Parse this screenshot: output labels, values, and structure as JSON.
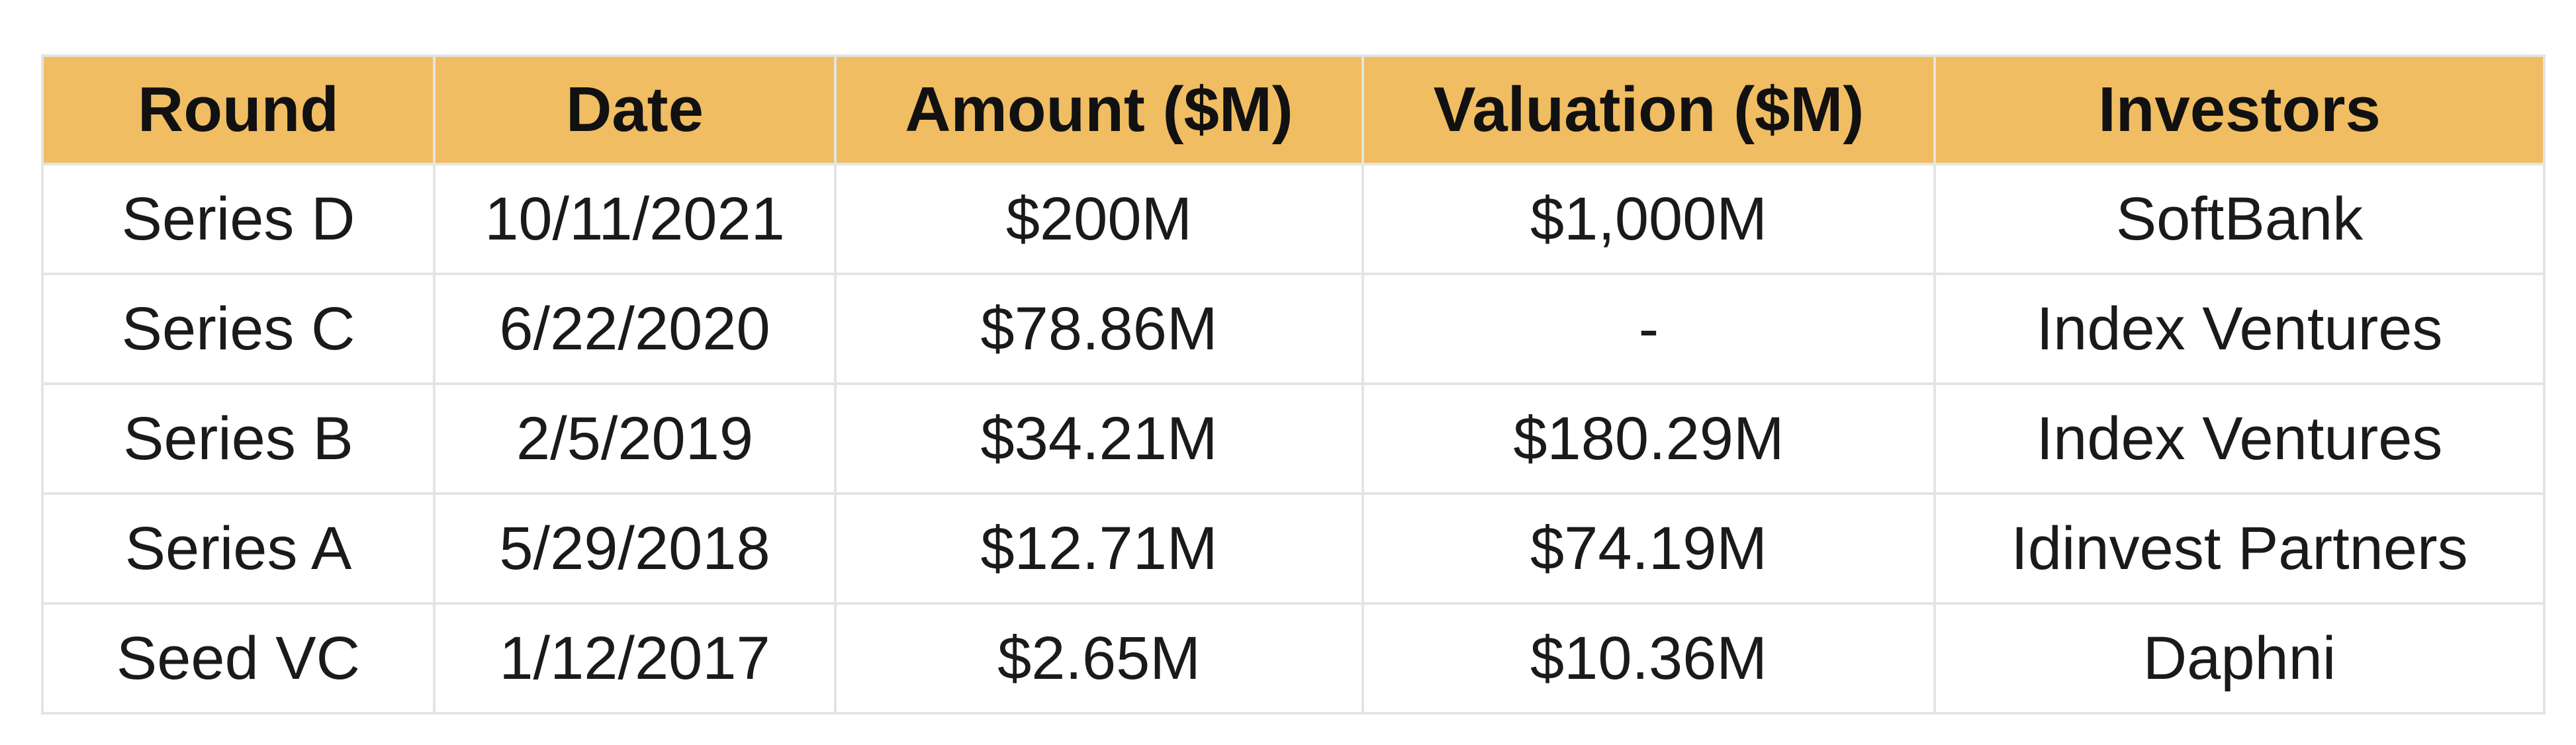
{
  "table": {
    "headers": [
      "Round",
      "Date",
      "Amount ($M)",
      "Valuation ($M)",
      "Investors"
    ],
    "rows": [
      [
        "Series D",
        "10/11/2021",
        "$200M",
        "$1,000M",
        "SoftBank"
      ],
      [
        "Series C",
        "6/22/2020",
        "$78.86M",
        "-",
        "Index Ventures"
      ],
      [
        "Series B",
        "2/5/2019",
        "$34.21M",
        "$180.29M",
        "Index Ventures"
      ],
      [
        "Series A",
        "5/29/2018",
        "$12.71M",
        "$74.19M",
        "Idinvest Partners"
      ],
      [
        "Seed VC",
        "1/12/2017",
        "$2.65M",
        "$10.36M",
        "Daphni"
      ]
    ]
  },
  "colors": {
    "header_background": "#f0bd62",
    "border": "#e4e4e4"
  }
}
